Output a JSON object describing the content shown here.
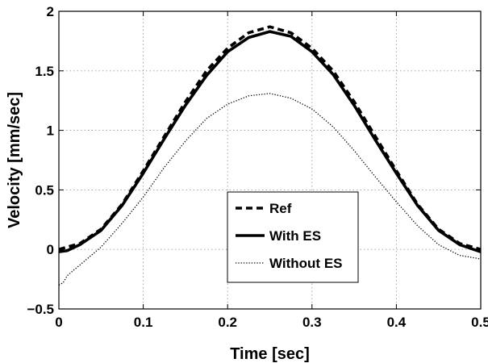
{
  "chart_data": {
    "type": "line",
    "xlabel": "Time [sec]",
    "ylabel": "Velocity [mm/sec]",
    "xlim": [
      0,
      0.5
    ],
    "ylim": [
      -0.5,
      2
    ],
    "x_ticks": [
      0,
      0.1,
      0.2,
      0.3,
      0.4,
      0.5
    ],
    "x_tick_labels": [
      "0",
      "0.1",
      "0.2",
      "0.3",
      "0.4",
      "0.5"
    ],
    "y_ticks": [
      -0.5,
      0,
      0.5,
      1,
      1.5,
      2
    ],
    "y_tick_labels": [
      "−0.5",
      "0",
      "0.5",
      "1",
      "1.5",
      "2"
    ],
    "grid": true,
    "legend_position": "center-bottom",
    "series": [
      {
        "name": "Ref",
        "style": "dashed",
        "color": "#000000",
        "x": [
          0,
          0.025,
          0.05,
          0.075,
          0.1,
          0.125,
          0.15,
          0.175,
          0.2,
          0.225,
          0.25,
          0.275,
          0.3,
          0.325,
          0.35,
          0.375,
          0.4,
          0.425,
          0.45,
          0.475,
          0.5
        ],
        "y": [
          0,
          0.05,
          0.17,
          0.38,
          0.66,
          0.95,
          1.24,
          1.5,
          1.69,
          1.82,
          1.87,
          1.82,
          1.69,
          1.5,
          1.24,
          0.95,
          0.66,
          0.38,
          0.17,
          0.05,
          0
        ]
      },
      {
        "name": "With ES",
        "style": "solid",
        "color": "#000000",
        "x": [
          0,
          0.01,
          0.025,
          0.05,
          0.075,
          0.1,
          0.125,
          0.15,
          0.175,
          0.2,
          0.225,
          0.25,
          0.275,
          0.3,
          0.325,
          0.35,
          0.375,
          0.4,
          0.425,
          0.45,
          0.475,
          0.5
        ],
        "y": [
          -0.02,
          -0.01,
          0.04,
          0.16,
          0.37,
          0.64,
          0.93,
          1.21,
          1.46,
          1.66,
          1.78,
          1.83,
          1.79,
          1.66,
          1.47,
          1.21,
          0.92,
          0.64,
          0.37,
          0.16,
          0.04,
          -0.02
        ]
      },
      {
        "name": "Without ES",
        "style": "dotted",
        "color": "#000000",
        "x": [
          0,
          0.005,
          0.01,
          0.025,
          0.05,
          0.075,
          0.1,
          0.125,
          0.15,
          0.175,
          0.2,
          0.225,
          0.25,
          0.275,
          0.3,
          0.325,
          0.35,
          0.375,
          0.4,
          0.425,
          0.45,
          0.475,
          0.5
        ],
        "y": [
          -0.3,
          -0.28,
          -0.22,
          -0.13,
          0.02,
          0.22,
          0.44,
          0.69,
          0.91,
          1.1,
          1.22,
          1.29,
          1.31,
          1.27,
          1.18,
          1.03,
          0.83,
          0.61,
          0.4,
          0.2,
          0.04,
          -0.05,
          -0.08
        ]
      }
    ]
  }
}
